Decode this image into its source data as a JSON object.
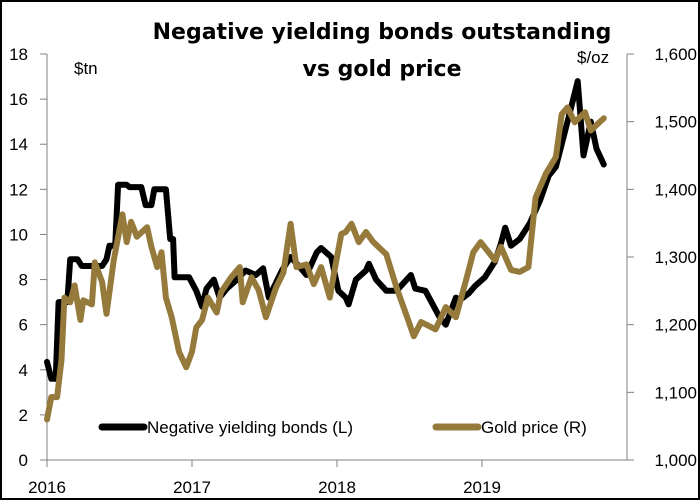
{
  "chart_data": {
    "type": "line",
    "title_lines": [
      "Negative yielding bonds outstanding",
      "vs gold price"
    ],
    "left_unit": "$tn",
    "right_unit": "$/oz",
    "x_ticks": [
      "2016",
      "2017",
      "2018",
      "2019"
    ],
    "xlim": [
      2016,
      2020
    ],
    "ylim_left": [
      0,
      18
    ],
    "ylim_right": [
      1000,
      1600
    ],
    "left_ticks": [
      "0",
      "2",
      "4",
      "6",
      "8",
      "10",
      "12",
      "14",
      "16",
      "18"
    ],
    "right_ticks": [
      "1,000",
      "1,100",
      "1,200",
      "1,300",
      "1,400",
      "1,500",
      "1,600"
    ],
    "grid": false,
    "legend_position": "bottom",
    "colors": {
      "bonds": "#000000",
      "gold": "#967a3c",
      "axis": "#808080"
    },
    "series": [
      {
        "name": "Negative yielding bonds (L)",
        "axis": "left",
        "x": [
          2016.0,
          2016.03,
          2016.06,
          2016.08,
          2016.14,
          2016.16,
          2016.21,
          2016.24,
          2016.38,
          2016.41,
          2016.43,
          2016.47,
          2016.49,
          2016.55,
          2016.57,
          2016.65,
          2016.68,
          2016.72,
          2016.74,
          2016.82,
          2016.85,
          2016.87,
          2016.88,
          2016.98,
          2017.03,
          2017.07,
          2017.1,
          2017.15,
          2017.19,
          2017.24,
          2017.31,
          2017.37,
          2017.44,
          2017.49,
          2017.53,
          2017.62,
          2017.68,
          2017.75,
          2017.79,
          2017.86,
          2017.89,
          2017.96,
          2018.01,
          2018.06,
          2018.08,
          2018.13,
          2018.2,
          2018.22,
          2018.27,
          2018.34,
          2018.41,
          2018.51,
          2018.54,
          2018.61,
          2018.71,
          2018.75,
          2018.82,
          2018.85,
          2018.91,
          2018.95,
          2019.02,
          2019.09,
          2019.13,
          2019.16,
          2019.2,
          2019.26,
          2019.33,
          2019.4,
          2019.46,
          2019.51,
          2019.55,
          2019.61,
          2019.66,
          2019.7,
          2019.75,
          2019.79,
          2019.84
        ],
        "values": [
          4.35,
          3.6,
          3.6,
          7.0,
          7.0,
          8.9,
          8.9,
          8.6,
          8.6,
          8.9,
          9.5,
          9.5,
          12.2,
          12.2,
          12.1,
          12.1,
          11.3,
          11.3,
          12.0,
          12.0,
          9.8,
          9.8,
          8.1,
          8.1,
          7.5,
          6.8,
          7.6,
          8.0,
          7.2,
          7.6,
          8.0,
          8.4,
          8.2,
          8.5,
          7.2,
          8.4,
          9.0,
          8.5,
          8.2,
          9.2,
          9.4,
          9.0,
          7.5,
          7.2,
          6.9,
          8.0,
          8.4,
          8.7,
          8.0,
          7.5,
          7.5,
          8.2,
          7.6,
          7.5,
          6.3,
          6.0,
          7.2,
          7.1,
          7.4,
          7.7,
          8.1,
          8.8,
          9.6,
          10.3,
          9.5,
          9.8,
          10.5,
          11.5,
          12.6,
          13.0,
          14.0,
          15.5,
          16.8,
          13.5,
          15.0,
          13.8,
          13.1
        ]
      },
      {
        "name": "Gold price (R)",
        "axis": "right",
        "x": [
          2016.0,
          2016.03,
          2016.07,
          2016.1,
          2016.12,
          2016.16,
          2016.19,
          2016.23,
          2016.25,
          2016.31,
          2016.33,
          2016.38,
          2016.41,
          2016.46,
          2016.52,
          2016.55,
          2016.58,
          2016.62,
          2016.69,
          2016.72,
          2016.76,
          2016.79,
          2016.82,
          2016.86,
          2016.91,
          2016.96,
          2017.0,
          2017.03,
          2017.07,
          2017.11,
          2017.17,
          2017.2,
          2017.27,
          2017.33,
          2017.35,
          2017.41,
          2017.46,
          2017.51,
          2017.58,
          2017.63,
          2017.68,
          2017.72,
          2017.79,
          2017.84,
          2017.89,
          2017.95,
          2017.98,
          2018.03,
          2018.06,
          2018.1,
          2018.15,
          2018.2,
          2018.25,
          2018.34,
          2018.41,
          2018.49,
          2018.53,
          2018.58,
          2018.68,
          2018.75,
          2018.82,
          2018.89,
          2018.94,
          2018.99,
          2019.09,
          2019.13,
          2019.2,
          2019.26,
          2019.32,
          2019.37,
          2019.44,
          2019.51,
          2019.55,
          2019.59,
          2019.64,
          2019.71,
          2019.75,
          2019.81,
          2019.84
        ],
        "values": [
          1060,
          1093,
          1093,
          1148,
          1240,
          1233,
          1258,
          1207,
          1236,
          1230,
          1292,
          1263,
          1216,
          1295,
          1363,
          1322,
          1352,
          1330,
          1344,
          1315,
          1285,
          1307,
          1240,
          1211,
          1160,
          1137,
          1160,
          1196,
          1207,
          1240,
          1218,
          1248,
          1270,
          1285,
          1233,
          1270,
          1251,
          1211,
          1255,
          1277,
          1349,
          1285,
          1289,
          1260,
          1285,
          1240,
          1277,
          1334,
          1337,
          1349,
          1322,
          1337,
          1322,
          1304,
          1255,
          1207,
          1183,
          1204,
          1193,
          1226,
          1211,
          1266,
          1307,
          1322,
          1295,
          1315,
          1281,
          1278,
          1285,
          1388,
          1423,
          1448,
          1511,
          1521,
          1499,
          1514,
          1487,
          1499,
          1505
        ]
      }
    ]
  }
}
